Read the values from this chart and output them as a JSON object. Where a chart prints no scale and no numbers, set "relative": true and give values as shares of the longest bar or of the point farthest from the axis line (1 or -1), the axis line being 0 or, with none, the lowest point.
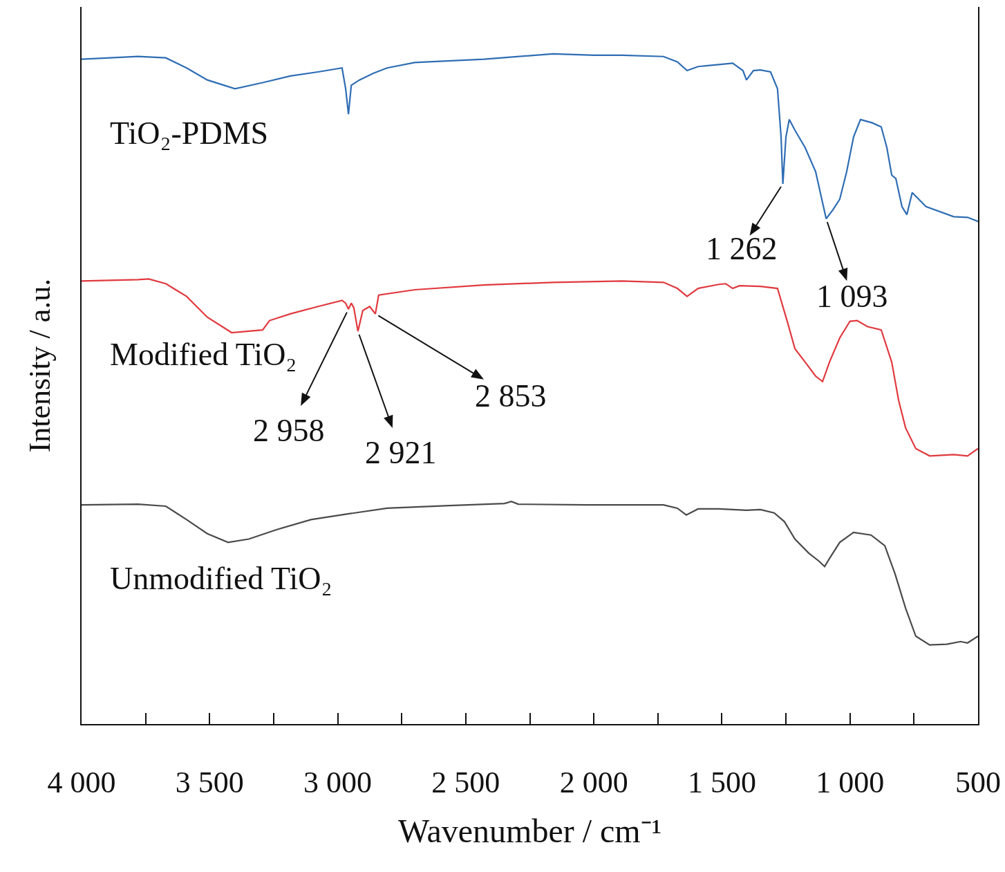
{
  "chart_data": {
    "type": "line",
    "relative": true,
    "xlabel": "Wavenumber / cm⁻¹",
    "ylabel": "Intensity / a.u.",
    "legend": false,
    "grid": false,
    "tick_labels": "x",
    "xlim": [
      4000,
      500
    ],
    "xticks": [
      {
        "value": 4000,
        "label": "4 000"
      },
      {
        "value": 3750,
        "label": null
      },
      {
        "value": 3500,
        "label": "3 500"
      },
      {
        "value": 3250,
        "label": null
      },
      {
        "value": 3000,
        "label": "3 000"
      },
      {
        "value": 2750,
        "label": null
      },
      {
        "value": 2500,
        "label": "2 500"
      },
      {
        "value": 2250,
        "label": null
      },
      {
        "value": 2000,
        "label": "2 000"
      },
      {
        "value": 1750,
        "label": null
      },
      {
        "value": 1500,
        "label": "1 500"
      },
      {
        "value": 1250,
        "label": null
      },
      {
        "value": 1000,
        "label": "1 000"
      },
      {
        "value": 750,
        "label": null
      },
      {
        "value": 500,
        "label": "500"
      }
    ],
    "series": [
      {
        "name": "TiO₂-PDMS",
        "color": "#2e6db4",
        "x": [
          4000,
          3779,
          3671,
          3590,
          3509,
          3401,
          3293,
          3185,
          3077,
          2983,
          2969,
          2958,
          2947,
          2915,
          2861,
          2807,
          2699,
          2429,
          2159,
          1998,
          1890,
          1728,
          1674,
          1636,
          1593,
          1512,
          1458,
          1418,
          1404,
          1377,
          1350,
          1310,
          1283,
          1269,
          1262,
          1250,
          1237,
          1215,
          1175,
          1134,
          1093,
          1067,
          1040,
          1013,
          986,
          959,
          913,
          878,
          856,
          837,
          821,
          797,
          778,
          757,
          703,
          595,
          541,
          500
        ],
        "values": [
          0.992,
          0.996,
          0.994,
          0.979,
          0.961,
          0.948,
          0.957,
          0.967,
          0.973,
          0.979,
          0.948,
          0.91,
          0.953,
          0.961,
          0.971,
          0.979,
          0.987,
          0.992,
          1,
          0.998,
          0.998,
          0.996,
          0.988,
          0.975,
          0.981,
          0.984,
          0.986,
          0.975,
          0.961,
          0.975,
          0.976,
          0.973,
          0.948,
          0.876,
          0.806,
          0.876,
          0.902,
          0.886,
          0.86,
          0.824,
          0.754,
          0.767,
          0.783,
          0.824,
          0.876,
          0.902,
          0.897,
          0.891,
          0.86,
          0.819,
          0.814,
          0.772,
          0.76,
          0.793,
          0.772,
          0.757,
          0.756,
          0.75
        ]
      },
      {
        "name": "Modified TiO₂",
        "color": "#e0393e",
        "x": [
          4000,
          3779,
          3738,
          3671,
          3590,
          3509,
          3414,
          3293,
          3266,
          3185,
          3077,
          2983,
          2969,
          2958,
          2947,
          2937,
          2921,
          2902,
          2875,
          2853,
          2840,
          2699,
          2429,
          2159,
          1890,
          1728,
          1674,
          1636,
          1593,
          1512,
          1485,
          1458,
          1431,
          1350,
          1283,
          1242,
          1215,
          1175,
          1134,
          1107,
          1080,
          1040,
          1000,
          972,
          932,
          878,
          837,
          810,
          783,
          743,
          689,
          595,
          541,
          500
        ],
        "values": [
          0.661,
          0.663,
          0.664,
          0.657,
          0.638,
          0.607,
          0.584,
          0.588,
          0.602,
          0.612,
          0.623,
          0.632,
          0.628,
          0.619,
          0.628,
          0.621,
          0.586,
          0.617,
          0.623,
          0.612,
          0.64,
          0.648,
          0.655,
          0.659,
          0.661,
          0.659,
          0.65,
          0.638,
          0.65,
          0.656,
          0.657,
          0.65,
          0.654,
          0.653,
          0.65,
          0.597,
          0.56,
          0.54,
          0.519,
          0.511,
          0.54,
          0.576,
          0.601,
          0.602,
          0.593,
          0.588,
          0.54,
          0.483,
          0.442,
          0.411,
          0.4,
          0.402,
          0.4,
          0.411
        ]
      },
      {
        "name": "Unmodified TiO₂",
        "color": "#4a4a4a",
        "x": [
          4000,
          3779,
          3671,
          3590,
          3509,
          3428,
          3347,
          3239,
          3104,
          2969,
          2807,
          2564,
          2349,
          2322,
          2295,
          2025,
          1728,
          1674,
          1639,
          1593,
          1512,
          1404,
          1350,
          1296,
          1256,
          1215,
          1161,
          1121,
          1099,
          1080,
          1040,
          986,
          918,
          864,
          824,
          783,
          743,
          689,
          622,
          568,
          541,
          500
        ],
        "values": [
          0.327,
          0.328,
          0.325,
          0.305,
          0.284,
          0.271,
          0.276,
          0.29,
          0.305,
          0.313,
          0.322,
          0.326,
          0.329,
          0.332,
          0.328,
          0.327,
          0.327,
          0.322,
          0.312,
          0.321,
          0.321,
          0.319,
          0.32,
          0.315,
          0.302,
          0.276,
          0.255,
          0.243,
          0.235,
          0.247,
          0.271,
          0.286,
          0.282,
          0.266,
          0.224,
          0.173,
          0.131,
          0.118,
          0.119,
          0.123,
          0.121,
          0.131
        ]
      }
    ],
    "annotations": [
      {
        "text": "1 262",
        "x": 1262,
        "y": 0.806
      },
      {
        "text": "1 093",
        "x": 1093,
        "y": 0.754
      },
      {
        "text": "2 958",
        "x": 2958,
        "y": 0.619
      },
      {
        "text": "2 921",
        "x": 2921,
        "y": 0.586
      },
      {
        "text": "2 853",
        "x": 2853,
        "y": 0.612
      }
    ]
  }
}
